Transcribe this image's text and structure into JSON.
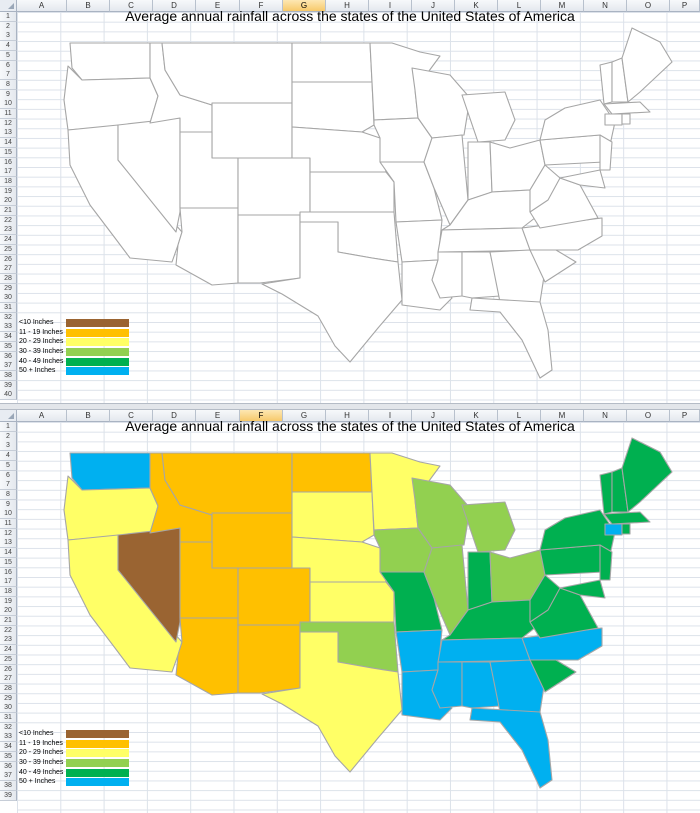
{
  "sheet": {
    "columns": [
      "A",
      "B",
      "C",
      "D",
      "E",
      "F",
      "G",
      "H",
      "I",
      "J",
      "K",
      "L",
      "M",
      "N",
      "O",
      "P"
    ],
    "top_rows": [
      "1",
      "2",
      "3",
      "4",
      "5",
      "6",
      "7",
      "8",
      "9",
      "10",
      "11",
      "12",
      "13",
      "14",
      "15",
      "16",
      "17",
      "18",
      "19",
      "20",
      "21",
      "22",
      "23",
      "24",
      "25",
      "26",
      "27",
      "28",
      "29",
      "30",
      "31",
      "32",
      "33",
      "34",
      "35",
      "36",
      "37",
      "38",
      "39",
      "40"
    ],
    "bottom_rows": [
      "1",
      "2",
      "3",
      "4",
      "5",
      "6",
      "7",
      "8",
      "9",
      "10",
      "11",
      "12",
      "13",
      "14",
      "15",
      "16",
      "17",
      "18",
      "19",
      "20",
      "21",
      "22",
      "23",
      "24",
      "25",
      "26",
      "27",
      "28",
      "29",
      "30",
      "31",
      "32",
      "33",
      "34",
      "35",
      "36",
      "37",
      "38",
      "39"
    ],
    "top_selected_column": "G",
    "bottom_selected_column": "F"
  },
  "title": "Average annual rainfall across the states of the United States of America",
  "legend": [
    {
      "label": "<10 Inches",
      "color": "#9a6432"
    },
    {
      "label": "11 - 19 Inches",
      "color": "#ffc000"
    },
    {
      "label": "20 - 29 Inches",
      "color": "#ffff66"
    },
    {
      "label": "30 - 39 Inches",
      "color": "#92d050"
    },
    {
      "label": "40 - 49 Inches",
      "color": "#00b050"
    },
    {
      "label": "50 + Inches",
      "color": "#00b0f0"
    }
  ],
  "map_colors": {
    "top_fill": "#ffffff",
    "top_stroke": "#a6a6a6",
    "bottom_stroke": "#a6a6a6"
  }
}
